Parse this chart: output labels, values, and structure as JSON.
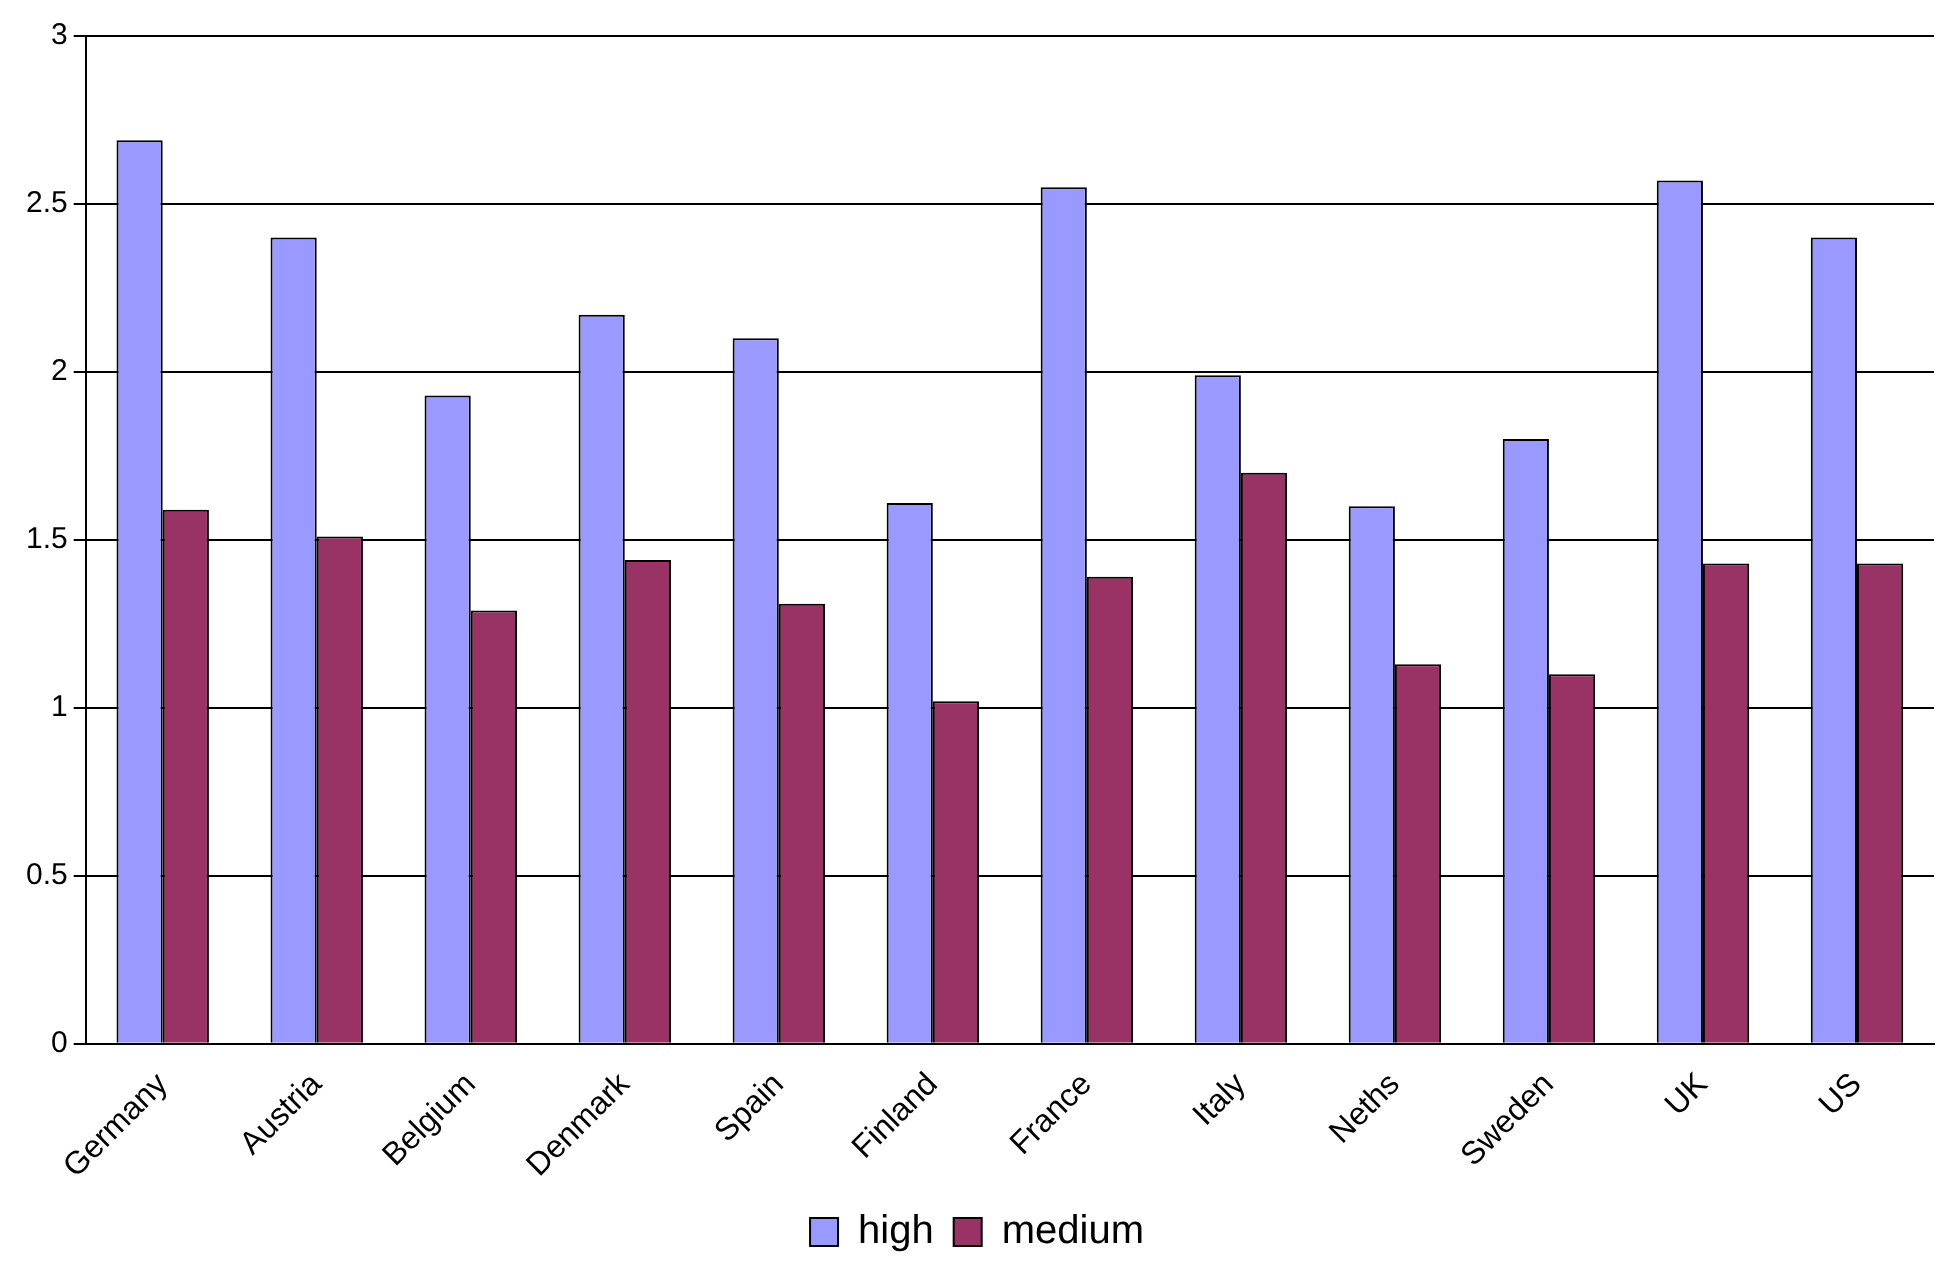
{
  "chart_data": {
    "type": "bar",
    "categories": [
      "Germany",
      "Austria",
      "Belgium",
      "Denmark",
      "Spain",
      "Finland",
      "France",
      "Italy",
      "Neths",
      "Sweden",
      "UK",
      "US"
    ],
    "series": [
      {
        "name": "high",
        "color": "#9999ff",
        "values": [
          2.69,
          2.4,
          1.93,
          2.17,
          2.1,
          1.61,
          2.55,
          1.99,
          1.6,
          1.8,
          2.57,
          2.4
        ]
      },
      {
        "name": "medium",
        "color": "#993366",
        "values": [
          1.59,
          1.51,
          1.29,
          1.44,
          1.31,
          1.02,
          1.39,
          1.7,
          1.13,
          1.1,
          1.43,
          1.43
        ]
      }
    ],
    "ylim": [
      0,
      3
    ],
    "yticks": [
      0,
      0.5,
      1,
      1.5,
      2,
      2.5,
      3
    ],
    "grid": "y",
    "legend": "bottom"
  }
}
